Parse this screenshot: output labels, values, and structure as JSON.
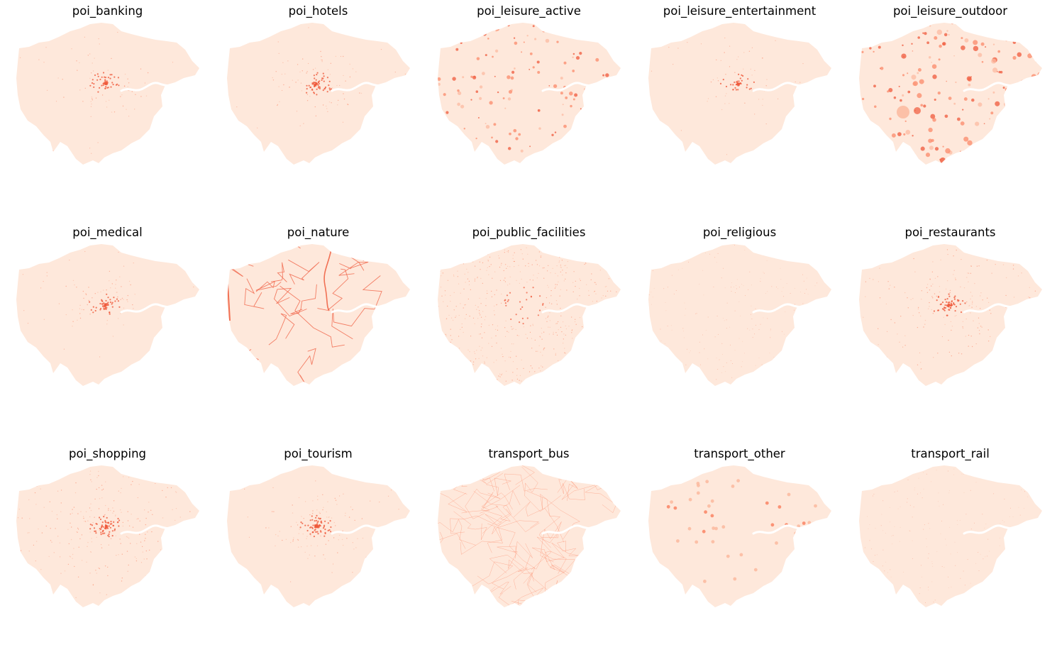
{
  "colors": {
    "base": "#fee8db",
    "low": "#fcbba1",
    "mid": "#fb8a6a",
    "high": "#ef5a3c",
    "river": "#ffffff"
  },
  "panels": [
    {
      "title": "poi_banking",
      "pattern": "center",
      "intensity": 0.25
    },
    {
      "title": "poi_hotels",
      "pattern": "center",
      "intensity": 0.35
    },
    {
      "title": "poi_leisure_active",
      "pattern": "blobs",
      "intensity": 0.8
    },
    {
      "title": "poi_leisure_entertainment",
      "pattern": "center",
      "intensity": 0.12
    },
    {
      "title": "poi_leisure_outdoor",
      "pattern": "blobs",
      "intensity": 1.0
    },
    {
      "title": "poi_medical",
      "pattern": "center",
      "intensity": 0.3
    },
    {
      "title": "poi_nature",
      "pattern": "lines",
      "intensity": 1.0
    },
    {
      "title": "poi_public_facilities",
      "pattern": "dense",
      "intensity": 0.9
    },
    {
      "title": "poi_religious",
      "pattern": "sparse",
      "intensity": 0.15
    },
    {
      "title": "poi_restaurants",
      "pattern": "radial",
      "intensity": 0.7
    },
    {
      "title": "poi_shopping",
      "pattern": "radial",
      "intensity": 0.9
    },
    {
      "title": "poi_tourism",
      "pattern": "center",
      "intensity": 0.6
    },
    {
      "title": "transport_bus",
      "pattern": "network",
      "intensity": 0.8
    },
    {
      "title": "transport_other",
      "pattern": "stations",
      "intensity": 1.0
    },
    {
      "title": "transport_rail",
      "pattern": "sparse",
      "intensity": 0.2
    }
  ]
}
